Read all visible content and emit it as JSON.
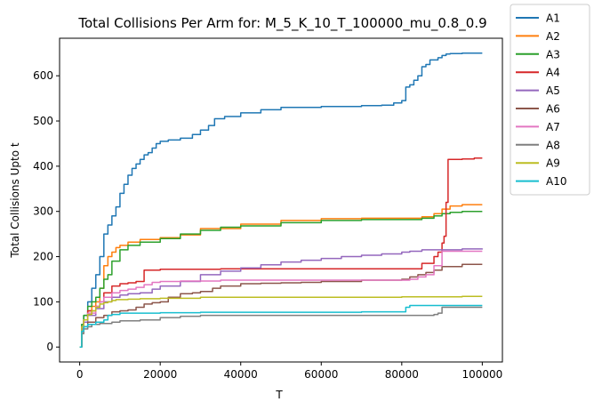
{
  "chart_data": {
    "type": "line",
    "title": "Total Collisions Per Arm for: M_5_K_10_T_100000_mu_0.8_0.9",
    "xlabel": "T",
    "ylabel": "Total Collisions Upto t",
    "xlim": [
      -5000,
      105000
    ],
    "ylim": [
      -33,
      683
    ],
    "xticks": [
      0,
      20000,
      40000,
      60000,
      80000,
      100000
    ],
    "yticks": [
      0,
      100,
      200,
      300,
      400,
      500,
      600
    ],
    "grid": false,
    "legend_position": "outside-right",
    "series": [
      {
        "name": "A1",
        "color": "#1f77b4",
        "x": [
          0,
          500,
          1000,
          2000,
          3000,
          4000,
          5000,
          6000,
          7000,
          8000,
          9000,
          10000,
          11000,
          12000,
          13000,
          14000,
          15000,
          16000,
          17000,
          18000,
          19000,
          20000,
          22000,
          25000,
          28000,
          30000,
          32000,
          33000,
          33500,
          36000,
          40000,
          45000,
          50000,
          60000,
          70000,
          75000,
          78000,
          80000,
          81000,
          82000,
          83000,
          84000,
          85000,
          86000,
          87000,
          88000,
          89000,
          90000,
          91000,
          92000,
          95000,
          100000
        ],
        "y": [
          0,
          50,
          70,
          100,
          130,
          160,
          200,
          250,
          270,
          290,
          310,
          340,
          360,
          380,
          395,
          405,
          415,
          425,
          430,
          440,
          450,
          455,
          458,
          462,
          470,
          480,
          490,
          490,
          505,
          510,
          518,
          525,
          530,
          532,
          534,
          535,
          540,
          545,
          575,
          580,
          590,
          600,
          620,
          625,
          635,
          635,
          640,
          645,
          648,
          649,
          650,
          650
        ]
      },
      {
        "name": "A2",
        "color": "#ff7f0e",
        "x": [
          0,
          500,
          1000,
          2000,
          3000,
          4000,
          5000,
          6000,
          7000,
          8000,
          9000,
          10000,
          12000,
          15000,
          20000,
          25000,
          30000,
          40000,
          50000,
          60000,
          70000,
          80000,
          85000,
          88000,
          90000,
          92000,
          95000,
          100000
        ],
        "y": [
          0,
          40,
          60,
          80,
          90,
          100,
          130,
          180,
          200,
          210,
          220,
          225,
          232,
          238,
          242,
          248,
          262,
          272,
          280,
          284,
          285,
          285,
          288,
          295,
          305,
          312,
          315,
          315
        ]
      },
      {
        "name": "A3",
        "color": "#2ca02c",
        "x": [
          0,
          500,
          1000,
          2000,
          3000,
          4000,
          5000,
          6000,
          7000,
          8000,
          10000,
          12000,
          15000,
          20000,
          25000,
          30000,
          35000,
          40000,
          50000,
          60000,
          70000,
          80000,
          85000,
          88000,
          90000,
          92000,
          95000,
          100000
        ],
        "y": [
          0,
          50,
          70,
          90,
          100,
          110,
          130,
          150,
          160,
          190,
          215,
          225,
          232,
          240,
          250,
          258,
          265,
          268,
          275,
          280,
          282,
          282,
          285,
          290,
          295,
          298,
          300,
          300
        ]
      },
      {
        "name": "A4",
        "color": "#d62728",
        "x": [
          0,
          500,
          1000,
          2000,
          4000,
          5000,
          6000,
          8000,
          10000,
          12000,
          14000,
          16000,
          18000,
          20000,
          25000,
          30000,
          35000,
          40000,
          50000,
          60000,
          70000,
          80000,
          85000,
          88000,
          89000,
          90000,
          90500,
          91000,
          91500,
          92000,
          95000,
          98000,
          100000
        ],
        "y": [
          0,
          40,
          60,
          80,
          90,
          100,
          120,
          135,
          140,
          142,
          145,
          170,
          170,
          172,
          172,
          172,
          173,
          173,
          173,
          173,
          173,
          173,
          185,
          200,
          210,
          230,
          245,
          320,
          415,
          415,
          416,
          418,
          418
        ]
      },
      {
        "name": "A5",
        "color": "#9467bd",
        "x": [
          0,
          500,
          1000,
          2000,
          4000,
          6000,
          8000,
          10000,
          12000,
          15000,
          18000,
          20000,
          25000,
          30000,
          35000,
          40000,
          45000,
          50000,
          55000,
          60000,
          65000,
          70000,
          75000,
          80000,
          82000,
          85000,
          88000,
          90000,
          95000,
          100000
        ],
        "y": [
          0,
          40,
          55,
          70,
          85,
          100,
          110,
          115,
          118,
          120,
          128,
          135,
          145,
          160,
          168,
          175,
          182,
          188,
          192,
          196,
          200,
          203,
          206,
          210,
          212,
          215,
          215,
          215,
          217,
          218
        ]
      },
      {
        "name": "A6",
        "color": "#8c564b",
        "x": [
          0,
          500,
          1000,
          2000,
          4000,
          6000,
          8000,
          10000,
          12000,
          14000,
          16000,
          18000,
          20000,
          22000,
          25000,
          28000,
          30000,
          33000,
          35000,
          40000,
          45000,
          50000,
          55000,
          60000,
          70000,
          80000,
          82000,
          84000,
          86000,
          88000,
          90000,
          95000,
          100000
        ],
        "y": [
          0,
          30,
          45,
          55,
          65,
          70,
          78,
          80,
          82,
          88,
          95,
          98,
          100,
          110,
          118,
          120,
          123,
          130,
          135,
          140,
          141,
          142,
          143,
          145,
          148,
          150,
          155,
          160,
          165,
          170,
          178,
          183,
          183
        ]
      },
      {
        "name": "A7",
        "color": "#e377c2",
        "x": [
          0,
          500,
          1000,
          2000,
          4000,
          5000,
          6000,
          8000,
          10000,
          12000,
          14000,
          16000,
          18000,
          20000,
          25000,
          30000,
          35000,
          40000,
          50000,
          60000,
          70000,
          80000,
          82000,
          84000,
          86000,
          88000,
          90000,
          95000,
          100000
        ],
        "y": [
          0,
          45,
          60,
          75,
          90,
          100,
          110,
          120,
          125,
          128,
          132,
          138,
          143,
          145,
          146,
          146,
          148,
          148,
          148,
          148,
          148,
          148,
          150,
          155,
          160,
          180,
          212,
          212,
          212
        ]
      },
      {
        "name": "A8",
        "color": "#7f7f7f",
        "x": [
          0,
          500,
          1000,
          2000,
          3000,
          5000,
          8000,
          10000,
          15000,
          20000,
          25000,
          30000,
          40000,
          50000,
          60000,
          70000,
          80000,
          85000,
          88000,
          89000,
          90000,
          95000,
          100000
        ],
        "y": [
          0,
          30,
          40,
          45,
          50,
          52,
          55,
          58,
          60,
          65,
          68,
          70,
          70,
          70,
          70,
          70,
          70,
          70,
          72,
          75,
          88,
          88,
          88
        ]
      },
      {
        "name": "A9",
        "color": "#bcbd22",
        "x": [
          0,
          500,
          1000,
          2000,
          3000,
          4000,
          5000,
          6000,
          7000,
          8000,
          9000,
          10000,
          12000,
          15000,
          20000,
          30000,
          40000,
          50000,
          60000,
          70000,
          80000,
          90000,
          95000,
          100000
        ],
        "y": [
          0,
          45,
          60,
          72,
          80,
          88,
          95,
          98,
          100,
          103,
          105,
          105,
          106,
          107,
          108,
          110,
          110,
          110,
          110,
          110,
          111,
          111,
          112,
          112
        ]
      },
      {
        "name": "A10",
        "color": "#17becf",
        "x": [
          0,
          500,
          1000,
          2000,
          4000,
          6000,
          7000,
          8000,
          10000,
          15000,
          20000,
          25000,
          30000,
          40000,
          50000,
          60000,
          70000,
          80000,
          81000,
          82000,
          85000,
          90000,
          95000,
          100000
        ],
        "y": [
          0,
          35,
          45,
          50,
          55,
          60,
          70,
          72,
          75,
          75,
          76,
          76,
          77,
          77,
          77,
          77,
          78,
          78,
          88,
          92,
          92,
          92,
          92,
          92
        ]
      }
    ]
  }
}
